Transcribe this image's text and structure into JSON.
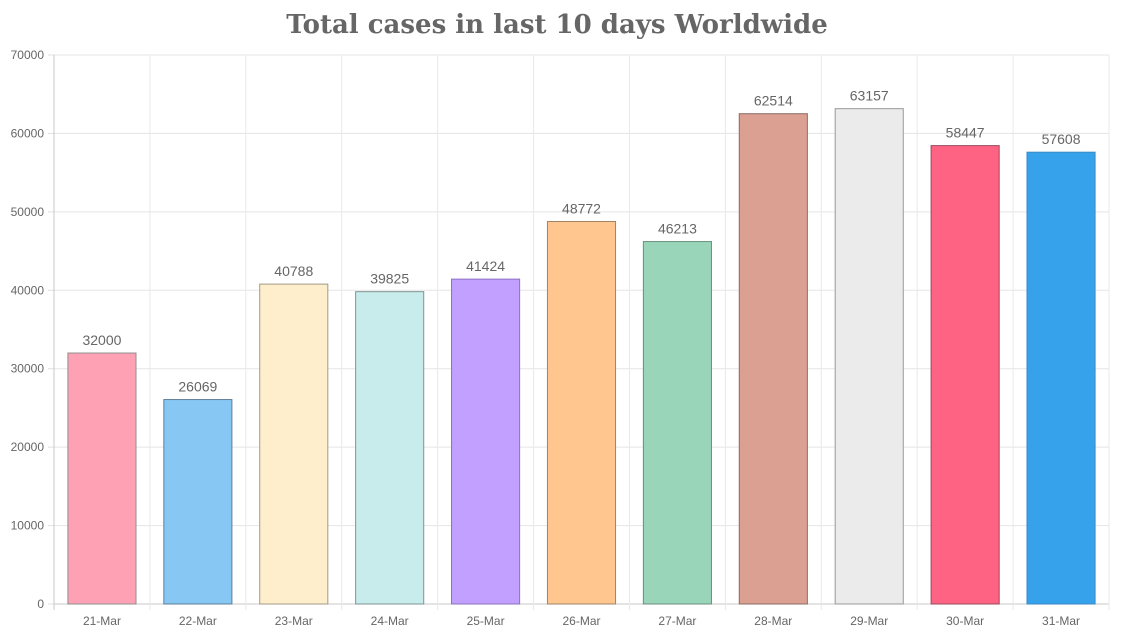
{
  "chart_data": {
    "type": "bar",
    "title": "Total cases in last 10 days Worldwide",
    "categories": [
      "21-Mar",
      "22-Mar",
      "23-Mar",
      "24-Mar",
      "25-Mar",
      "26-Mar",
      "27-Mar",
      "28-Mar",
      "29-Mar",
      "30-Mar",
      "31-Mar"
    ],
    "values": [
      32000,
      26069,
      40788,
      39825,
      41424,
      48772,
      46213,
      62514,
      63157,
      58447,
      57608
    ],
    "bar_colors": [
      "#ffa1b5",
      "#86c7f3",
      "#ffeecc",
      "#c8ebeb",
      "#c1a0ff",
      "#ffc68f",
      "#99d6b9",
      "#dca092",
      "#ebebeb",
      "#ff6384",
      "#36a2eb"
    ],
    "bar_border_colors": [
      "#8e8e8e",
      "#5f7f9a",
      "#a09a86",
      "#7e9393",
      "#8d6fc2",
      "#a08466",
      "#6b8f7d",
      "#8c6a62",
      "#999999",
      "#9a4a5c",
      "#3b8ac4"
    ],
    "ylim": [
      0,
      70000
    ],
    "yticks": [
      "0",
      "10000",
      "20000",
      "30000",
      "40000",
      "50000",
      "60000",
      "70000"
    ],
    "data_labels": true,
    "grid": true,
    "legend": "none"
  }
}
